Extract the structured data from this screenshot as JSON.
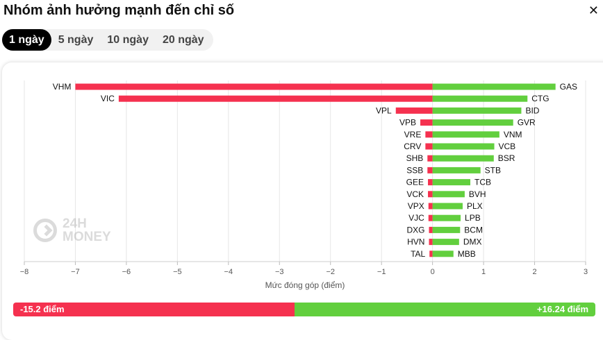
{
  "header": {
    "title": "Nhóm ảnh hưởng mạnh đến chỉ số"
  },
  "tabs": [
    {
      "label": "1 ngày",
      "active": true
    },
    {
      "label": "5 ngày",
      "active": false
    },
    {
      "label": "10 ngày",
      "active": false
    },
    {
      "label": "20 ngày",
      "active": false
    }
  ],
  "watermark": {
    "line1": "24H",
    "line2": "MONEY"
  },
  "summary": {
    "negative_label": "-15.2 điểm",
    "positive_label": "+16.24 điểm",
    "negative_value": -15.2,
    "positive_value": 16.24
  },
  "colors": {
    "negative": "#f5314f",
    "positive": "#62cf3e",
    "grid": "#e6e6e6"
  },
  "chart_data": {
    "type": "bar",
    "orientation": "horizontal",
    "xlabel": "Mức đóng góp (điểm)",
    "xlim": [
      -8,
      3
    ],
    "xticks": [
      -8,
      -7,
      -6,
      -5,
      -4,
      -3,
      -2,
      -1,
      0,
      1,
      2,
      3
    ],
    "grid": true,
    "series": [
      {
        "categories": [
          "VHM",
          "VIC",
          "VPL",
          "VPB",
          "VRE",
          "CRV",
          "SHB",
          "SSB",
          "GEE",
          "VCK",
          "VPX",
          "VJC",
          "DXG",
          "HVN",
          "TAL"
        ],
        "values": [
          -7.0,
          -6.15,
          -0.72,
          -0.24,
          -0.14,
          -0.14,
          -0.1,
          -0.1,
          -0.09,
          -0.09,
          -0.08,
          -0.08,
          -0.07,
          -0.07,
          -0.06
        ]
      },
      {
        "categories": [
          "GAS",
          "CTG",
          "BID",
          "GVR",
          "VNM",
          "VCB",
          "BSR",
          "STB",
          "TCB",
          "BVH",
          "PLX",
          "LPB",
          "BCM",
          "DMX",
          "MBB"
        ],
        "values": [
          2.41,
          1.86,
          1.74,
          1.58,
          1.31,
          1.21,
          1.2,
          0.94,
          0.74,
          0.63,
          0.59,
          0.55,
          0.54,
          0.52,
          0.41
        ]
      }
    ]
  }
}
